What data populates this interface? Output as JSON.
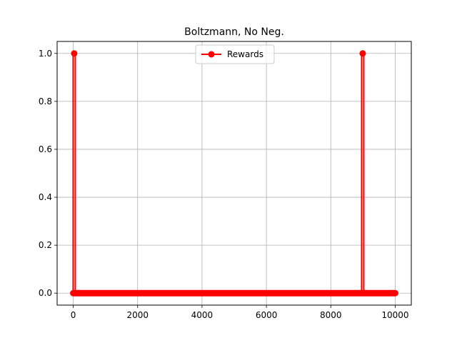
{
  "chart_data": {
    "type": "line",
    "title": "Boltzmann, No Neg.",
    "xlabel": "",
    "ylabel": "",
    "xlim": [
      -500,
      10500
    ],
    "ylim": [
      -0.05,
      1.05
    ],
    "xticks": [
      0,
      2000,
      4000,
      6000,
      8000,
      10000
    ],
    "xtick_labels": [
      "0",
      "2000",
      "4000",
      "6000",
      "8000",
      "10000"
    ],
    "yticks": [
      0.0,
      0.2,
      0.4,
      0.6,
      0.8,
      1.0
    ],
    "ytick_labels": [
      "0.0",
      "0.2",
      "0.4",
      "0.6",
      "0.8",
      "1.0"
    ],
    "grid": true,
    "legend_position": "top-center",
    "series": [
      {
        "name": "Rewards",
        "color": "#ff0000",
        "marker": "circle",
        "n_points": 10000,
        "baseline_value": 0,
        "spikes": [
          {
            "x": 30,
            "y": 1.0
          },
          {
            "x": 8990,
            "y": 1.0
          }
        ]
      }
    ]
  }
}
